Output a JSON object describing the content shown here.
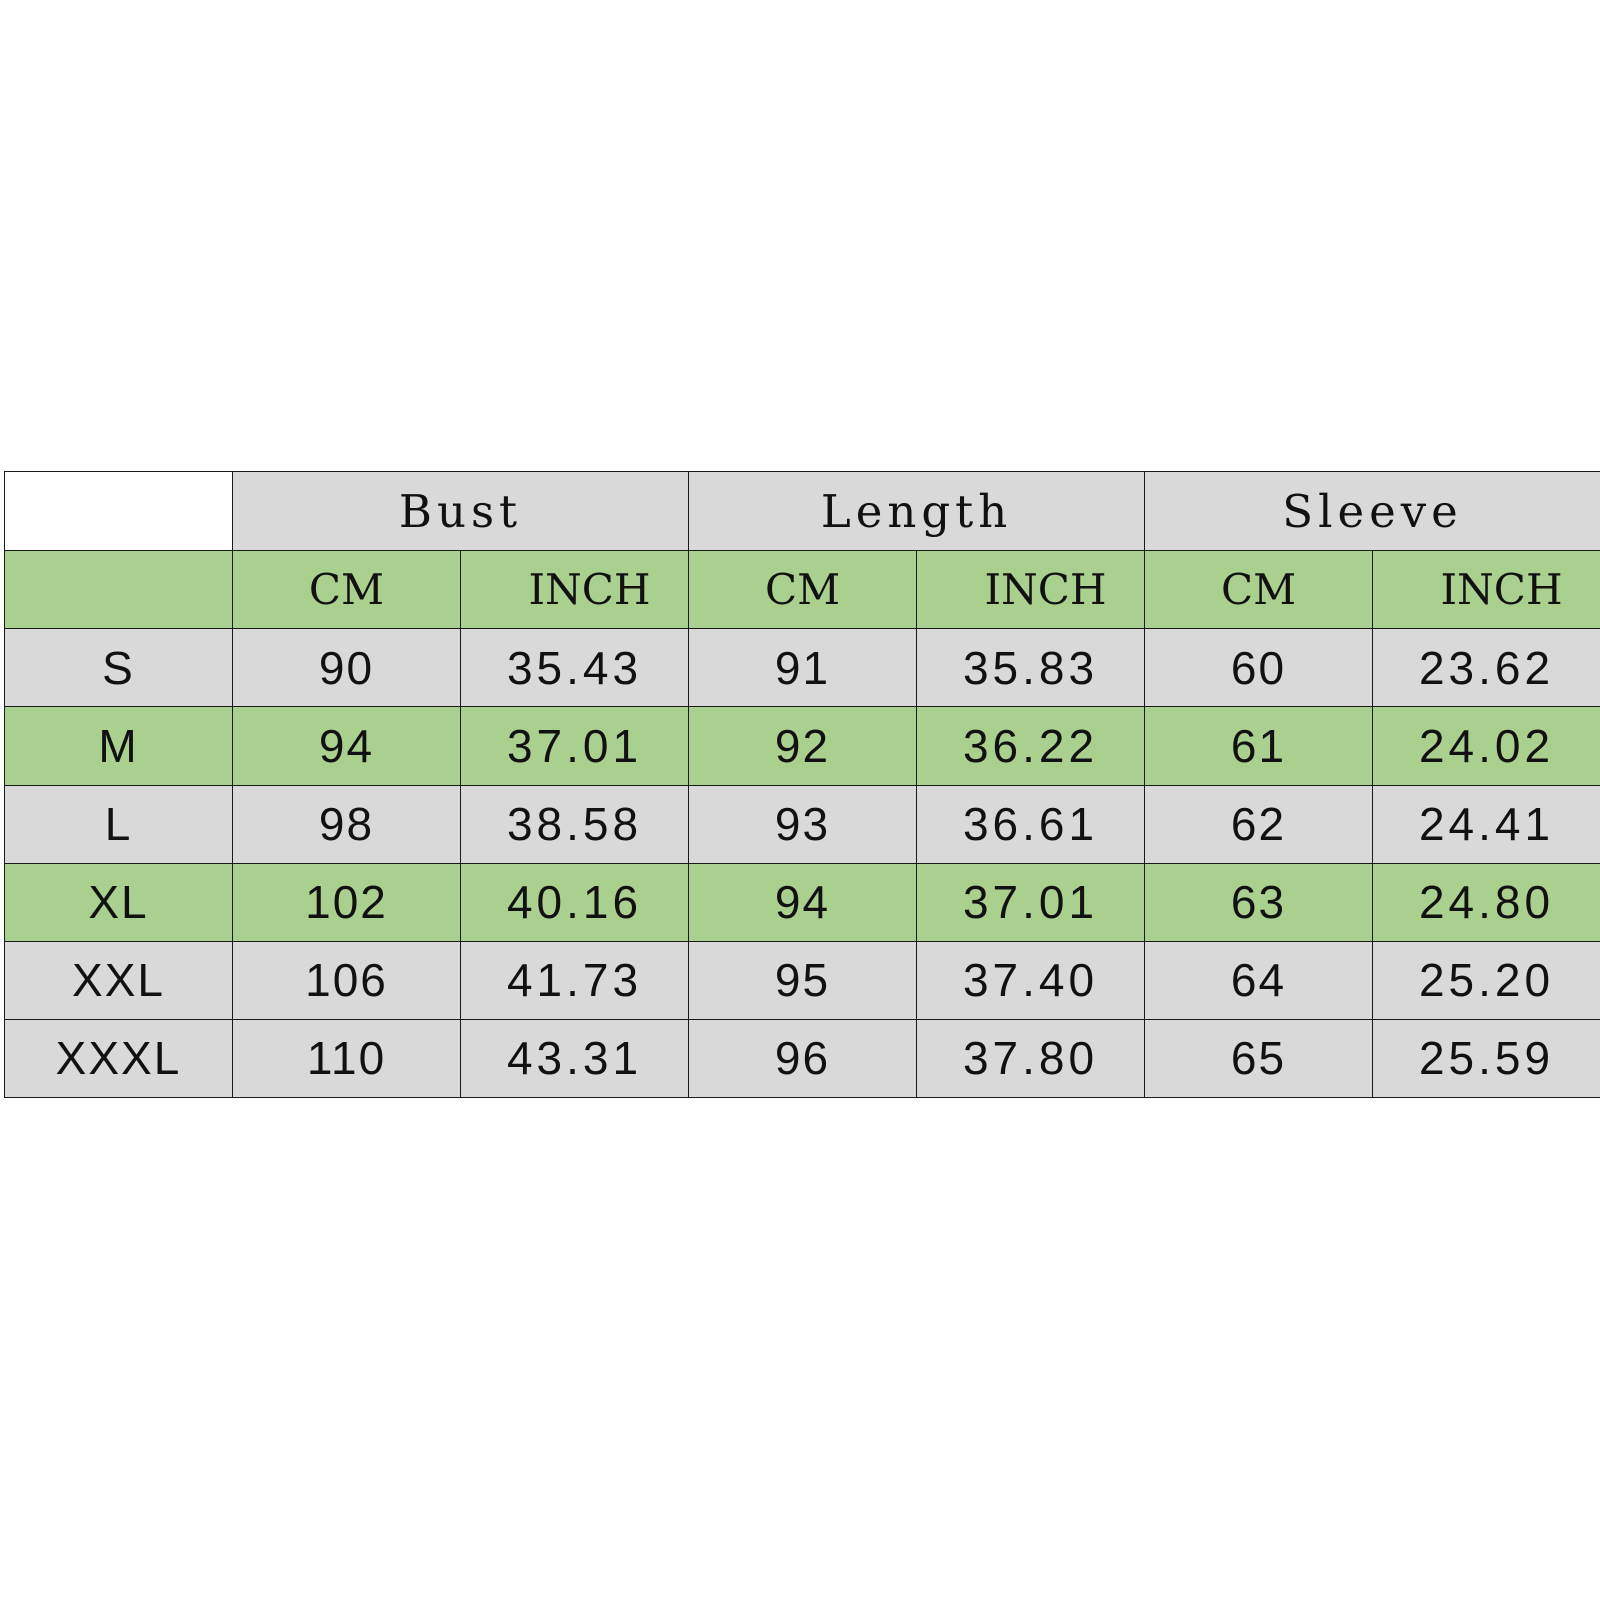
{
  "colors": {
    "header_gray": "#d9d9d9",
    "header_green": "#a9d08e",
    "border": "#1a1a1a",
    "text": "#111111"
  },
  "table": {
    "groups": [
      "Bust",
      "Length",
      "Sleeve"
    ],
    "units": [
      "CM",
      "INCH",
      "CM",
      "INCH",
      "CM",
      "INCH"
    ],
    "rows": [
      {
        "size": "S",
        "cells": [
          "90",
          "35.43",
          "91",
          "35.83",
          "60",
          "23.62"
        ],
        "band": "gray"
      },
      {
        "size": "M",
        "cells": [
          "94",
          "37.01",
          "92",
          "36.22",
          "61",
          "24.02"
        ],
        "band": "green"
      },
      {
        "size": "L",
        "cells": [
          "98",
          "38.58",
          "93",
          "36.61",
          "62",
          "24.41"
        ],
        "band": "gray"
      },
      {
        "size": "XL",
        "cells": [
          "102",
          "40.16",
          "94",
          "37.01",
          "63",
          "24.80"
        ],
        "band": "green"
      },
      {
        "size": "XXL",
        "cells": [
          "106",
          "41.73",
          "95",
          "37.40",
          "64",
          "25.20"
        ],
        "band": "gray"
      },
      {
        "size": "XXXL",
        "cells": [
          "110",
          "43.31",
          "96",
          "37.80",
          "65",
          "25.59"
        ],
        "band": "gray"
      }
    ]
  }
}
